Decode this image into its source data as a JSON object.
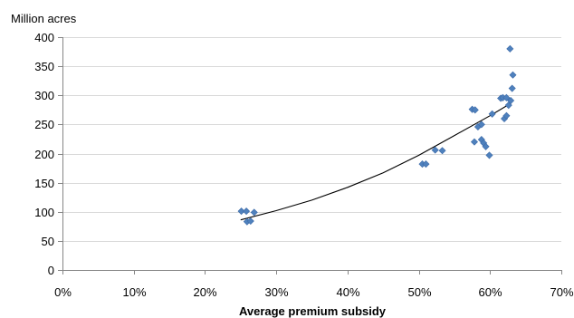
{
  "chart_data": {
    "type": "scatter",
    "title": "",
    "ylabel": "Million acres",
    "xlabel": "Average premium subsidy",
    "xlim": [
      0,
      0.7
    ],
    "ylim": [
      0,
      400
    ],
    "x_ticks": [
      0,
      0.1,
      0.2,
      0.3,
      0.4,
      0.5,
      0.6,
      0.7
    ],
    "x_tick_labels": [
      "0%",
      "10%",
      "20%",
      "30%",
      "40%",
      "50%",
      "60%",
      "70%"
    ],
    "y_ticks": [
      0,
      50,
      100,
      150,
      200,
      250,
      300,
      350,
      400
    ],
    "y_tick_labels": [
      "0",
      "50",
      "100",
      "150",
      "200",
      "250",
      "300",
      "350",
      "400"
    ],
    "grid": "horizontal",
    "legend": "none",
    "series": [
      {
        "marker": "diamond",
        "color": "#4F81BD",
        "points": [
          {
            "x": 0.251,
            "y": 101
          },
          {
            "x": 0.258,
            "y": 101
          },
          {
            "x": 0.259,
            "y": 83
          },
          {
            "x": 0.264,
            "y": 84
          },
          {
            "x": 0.269,
            "y": 99
          },
          {
            "x": 0.505,
            "y": 182
          },
          {
            "x": 0.51,
            "y": 182
          },
          {
            "x": 0.523,
            "y": 206
          },
          {
            "x": 0.533,
            "y": 205
          },
          {
            "x": 0.575,
            "y": 276
          },
          {
            "x": 0.579,
            "y": 275
          },
          {
            "x": 0.578,
            "y": 220
          },
          {
            "x": 0.583,
            "y": 246
          },
          {
            "x": 0.588,
            "y": 250
          },
          {
            "x": 0.588,
            "y": 224
          },
          {
            "x": 0.591,
            "y": 218
          },
          {
            "x": 0.594,
            "y": 212
          },
          {
            "x": 0.599,
            "y": 197
          },
          {
            "x": 0.603,
            "y": 268
          },
          {
            "x": 0.615,
            "y": 295
          },
          {
            "x": 0.618,
            "y": 296
          },
          {
            "x": 0.62,
            "y": 260
          },
          {
            "x": 0.623,
            "y": 265
          },
          {
            "x": 0.623,
            "y": 296
          },
          {
            "x": 0.626,
            "y": 283
          },
          {
            "x": 0.628,
            "y": 380
          },
          {
            "x": 0.629,
            "y": 291
          },
          {
            "x": 0.631,
            "y": 312
          },
          {
            "x": 0.632,
            "y": 335
          }
        ]
      }
    ],
    "trendline": {
      "type": "exponential",
      "color": "#000000",
      "points": [
        {
          "x": 0.25,
          "y": 86
        },
        {
          "x": 0.3,
          "y": 102
        },
        {
          "x": 0.35,
          "y": 120
        },
        {
          "x": 0.4,
          "y": 142
        },
        {
          "x": 0.45,
          "y": 167
        },
        {
          "x": 0.5,
          "y": 197
        },
        {
          "x": 0.55,
          "y": 231
        },
        {
          "x": 0.6,
          "y": 265
        },
        {
          "x": 0.63,
          "y": 287
        }
      ]
    }
  }
}
